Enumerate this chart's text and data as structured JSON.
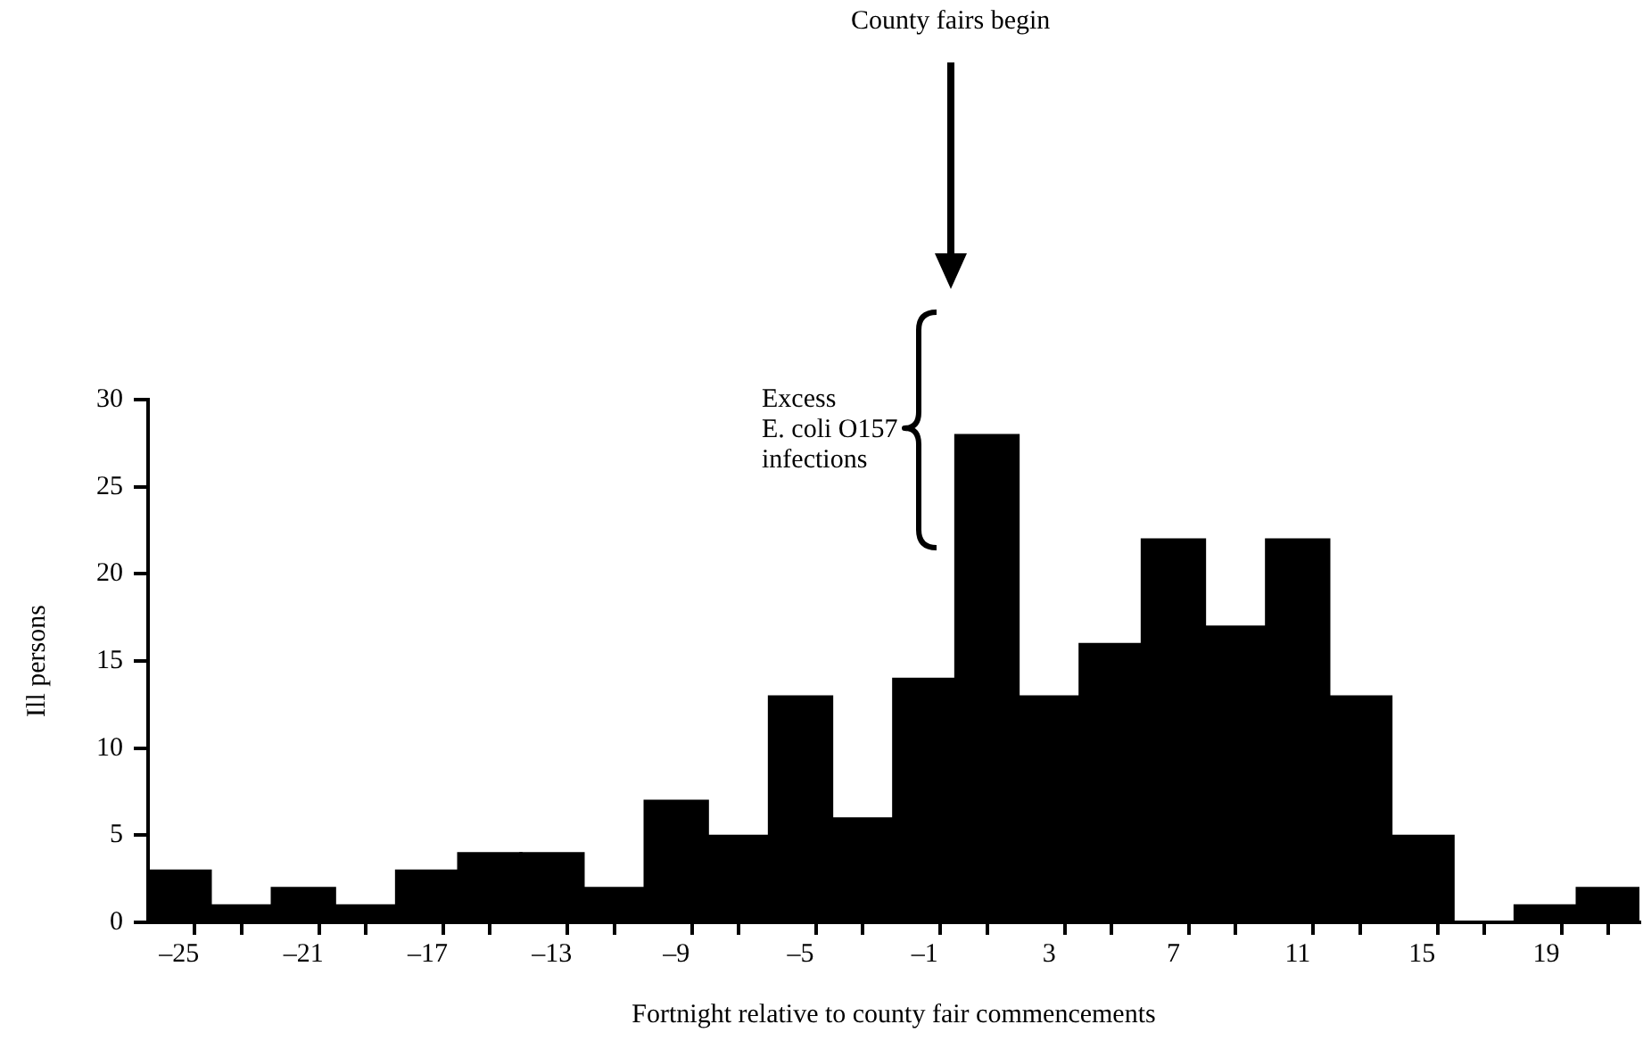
{
  "chart_data": {
    "type": "histogram",
    "xlabel": "Fortnight relative to county fair commencements",
    "ylabel": "Ill persons",
    "bins": [
      -26,
      -24,
      -22,
      -20,
      -18,
      -16,
      -14,
      -12,
      -10,
      -8,
      -6,
      -4,
      -2,
      0,
      2,
      4,
      6,
      8,
      10,
      12,
      14,
      16,
      18,
      20,
      22
    ],
    "values": [
      3,
      1,
      2,
      1,
      3,
      4,
      4,
      2,
      7,
      5,
      13,
      6,
      14,
      28,
      13,
      16,
      22,
      17,
      22,
      13,
      5,
      0,
      1,
      2
    ],
    "color": "#000000",
    "xlim": [
      -26,
      22
    ],
    "xticks": [
      {
        "value": -25,
        "label": "–25"
      },
      {
        "value": -21,
        "label": "–21"
      },
      {
        "value": -17,
        "label": "–17"
      },
      {
        "value": -13,
        "label": "–13"
      },
      {
        "value": -9,
        "label": "–9"
      },
      {
        "value": -5,
        "label": "–5"
      },
      {
        "value": -1,
        "label": "–1"
      },
      3,
      7,
      11,
      15,
      19
    ],
    "ylim": [
      0,
      30
    ],
    "yticks": [
      0,
      5,
      10,
      15,
      20,
      25,
      30
    ],
    "grid": false,
    "legend": false,
    "annotations": [
      "County fairs begin",
      "Excess\nE. coli O157\ninfections"
    ]
  }
}
